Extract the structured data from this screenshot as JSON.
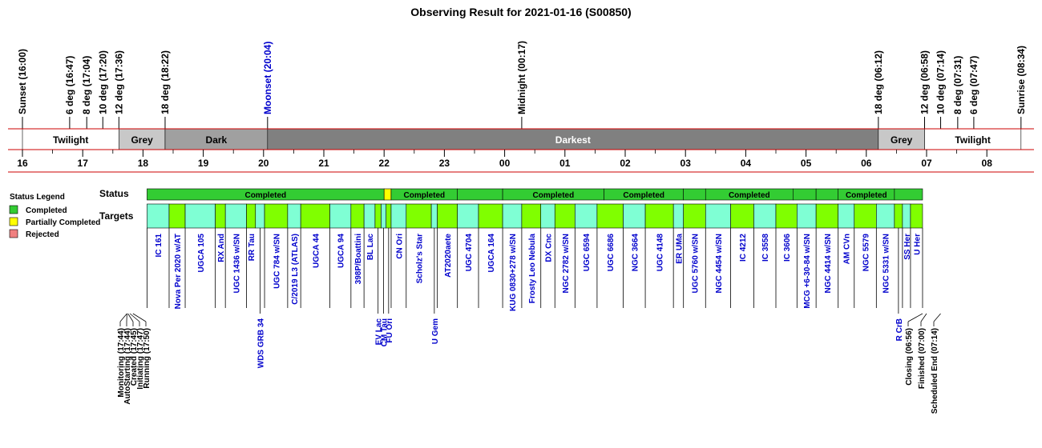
{
  "chart_data": {
    "type": "timeline",
    "title": "Observing Result for 2021-01-16 (S00850)",
    "x_axis": {
      "unit": "hour",
      "range": [
        "16:00",
        "08:34"
      ],
      "tick_labels": [
        "16",
        "17",
        "18",
        "19",
        "20",
        "21",
        "22",
        "23",
        "00",
        "01",
        "02",
        "03",
        "04",
        "05",
        "06",
        "07",
        "08"
      ]
    },
    "events": [
      {
        "label": "Sunset (16:00)",
        "time": "16:00",
        "color": "#000000"
      },
      {
        "label": "6 deg (16:47)",
        "time": "16:47",
        "color": "#000000"
      },
      {
        "label": "8 deg (17:04)",
        "time": "17:04",
        "color": "#000000"
      },
      {
        "label": "10 deg (17:20)",
        "time": "17:20",
        "color": "#000000"
      },
      {
        "label": "12 deg (17:36)",
        "time": "17:36",
        "color": "#000000"
      },
      {
        "label": "18 deg (18:22)",
        "time": "18:22",
        "color": "#000000"
      },
      {
        "label": "Moonset (20:04)",
        "time": "20:04",
        "color": "#0000cc"
      },
      {
        "label": "Midnight (00:17)",
        "time": "00:17",
        "color": "#000000"
      },
      {
        "label": "18 deg (06:12)",
        "time": "06:12",
        "color": "#000000"
      },
      {
        "label": "12 deg (06:58)",
        "time": "06:58",
        "color": "#000000"
      },
      {
        "label": "10 deg (07:14)",
        "time": "07:14",
        "color": "#000000"
      },
      {
        "label": "8 deg (07:31)",
        "time": "07:31",
        "color": "#000000"
      },
      {
        "label": "6 deg (07:47)",
        "time": "07:47",
        "color": "#000000"
      },
      {
        "label": "Sunrise (08:34)",
        "time": "08:34",
        "color": "#000000"
      }
    ],
    "phases": [
      {
        "label": "Twilight",
        "start": "16:00",
        "end": "17:36",
        "color": "#ffffff"
      },
      {
        "label": "Grey",
        "start": "17:36",
        "end": "18:22",
        "color": "#c8c8c8"
      },
      {
        "label": "Dark",
        "start": "18:22",
        "end": "20:04",
        "color": "#a0a0a0"
      },
      {
        "label": "Darkest",
        "start": "20:04",
        "end": "06:12",
        "color": "#808080"
      },
      {
        "label": "Grey",
        "start": "06:12",
        "end": "06:58",
        "color": "#c8c8c8"
      },
      {
        "label": "Twilight",
        "start": "06:58",
        "end": "08:34",
        "color": "#ffffff"
      }
    ],
    "status_row_label": "Status",
    "targets_row_label": "Targets",
    "status_legend": {
      "title": "Status Legend",
      "items": [
        {
          "label": "Completed",
          "color": "#33cc33"
        },
        {
          "label": "Partially Completed",
          "color": "#ffff00"
        },
        {
          "label": "Rejected",
          "color": "#f08080"
        }
      ]
    },
    "status_segments": [
      {
        "label": "Completed",
        "start": "18:04",
        "end": "22:00",
        "status": "completed"
      },
      {
        "label": "",
        "start": "22:00",
        "end": "22:07",
        "status": "partial"
      },
      {
        "label": "Completed",
        "start": "22:07",
        "end": "23:13",
        "status": "completed"
      },
      {
        "label": "",
        "start": "23:13",
        "end": "23:58",
        "status": "completed"
      },
      {
        "label": "Completed",
        "start": "23:58",
        "end": "01:39",
        "status": "completed"
      },
      {
        "label": "Completed",
        "start": "01:39",
        "end": "02:58",
        "status": "completed"
      },
      {
        "label": "",
        "start": "02:58",
        "end": "03:20",
        "status": "completed"
      },
      {
        "label": "Completed",
        "start": "03:20",
        "end": "04:47",
        "status": "completed"
      },
      {
        "label": "",
        "start": "04:47",
        "end": "05:10",
        "status": "completed"
      },
      {
        "label": "",
        "start": "05:10",
        "end": "05:32",
        "status": "completed"
      },
      {
        "label": "Completed",
        "start": "05:32",
        "end": "06:28",
        "status": "completed"
      },
      {
        "label": "",
        "start": "06:28",
        "end": "06:56",
        "status": "completed"
      }
    ],
    "targets": [
      {
        "name": "IC 161",
        "start": "18:04",
        "end": "18:26",
        "row": "lower"
      },
      {
        "name": "Nova Per 2020 w/AT",
        "start": "18:26",
        "end": "18:42",
        "row": "lower"
      },
      {
        "name": "UGCA 105",
        "start": "18:42",
        "end": "19:12",
        "row": "lower"
      },
      {
        "name": "RX And",
        "start": "19:12",
        "end": "19:22",
        "row": "lower"
      },
      {
        "name": "UGC 1436 w/SN",
        "start": "19:22",
        "end": "19:43",
        "row": "lower"
      },
      {
        "name": "RR Tau",
        "start": "19:43",
        "end": "19:52",
        "row": "lower"
      },
      {
        "name": "WDS GRB 34",
        "start": "19:52",
        "end": "20:01",
        "row": "upper"
      },
      {
        "name": "UGC 784 w/SN",
        "start": "20:01",
        "end": "20:24",
        "row": "lower"
      },
      {
        "name": "C/2019 L3 (ATLAS)",
        "start": "20:24",
        "end": "20:37",
        "row": "lower"
      },
      {
        "name": "UGCA 44",
        "start": "20:37",
        "end": "21:06",
        "row": "lower"
      },
      {
        "name": "UGCA 94",
        "start": "21:06",
        "end": "21:27",
        "row": "lower"
      },
      {
        "name": "398P/Boattini",
        "start": "21:27",
        "end": "21:40",
        "row": "lower"
      },
      {
        "name": "BL Lac",
        "start": "21:40",
        "end": "21:51",
        "row": "lower"
      },
      {
        "name": "EV Lac",
        "start": "21:51",
        "end": "21:57",
        "row": "upper"
      },
      {
        "name": "CM Tau",
        "start": "21:57",
        "end": "22:02",
        "row": "upper"
      },
      {
        "name": "FU Ori",
        "start": "22:02",
        "end": "22:07",
        "row": "upper"
      },
      {
        "name": "CN Ori",
        "start": "22:07",
        "end": "22:22",
        "row": "lower"
      },
      {
        "name": "Scholz's Star",
        "start": "22:22",
        "end": "22:47",
        "row": "lower"
      },
      {
        "name": "U Gem",
        "start": "22:47",
        "end": "22:53",
        "row": "upper"
      },
      {
        "name": "AT2020aete",
        "start": "22:53",
        "end": "23:13",
        "row": "lower"
      },
      {
        "name": "UGC 4704",
        "start": "23:13",
        "end": "23:34",
        "row": "lower"
      },
      {
        "name": "UGCA 164",
        "start": "23:34",
        "end": "23:58",
        "row": "lower"
      },
      {
        "name": "KUG 0830+278 w/SN",
        "start": "23:58",
        "end": "00:17",
        "row": "lower"
      },
      {
        "name": "Frosty Leo Nebula",
        "start": "00:17",
        "end": "00:36",
        "row": "lower"
      },
      {
        "name": "DX Cnc",
        "start": "00:36",
        "end": "00:50",
        "row": "lower"
      },
      {
        "name": "NGC 2782 w/SN",
        "start": "00:50",
        "end": "01:10",
        "row": "lower"
      },
      {
        "name": "UGC 6594",
        "start": "01:10",
        "end": "01:32",
        "row": "lower"
      },
      {
        "name": "UGC 6686",
        "start": "01:32",
        "end": "01:58",
        "row": "lower"
      },
      {
        "name": "NGC 3664",
        "start": "01:58",
        "end": "02:20",
        "row": "lower"
      },
      {
        "name": "UGC 4148",
        "start": "02:20",
        "end": "02:48",
        "row": "lower"
      },
      {
        "name": "ER UMa",
        "start": "02:48",
        "end": "02:58",
        "row": "lower"
      },
      {
        "name": "UGC 5760 w/SN",
        "start": "02:58",
        "end": "03:20",
        "row": "lower"
      },
      {
        "name": "NGC 4454 w/SN",
        "start": "03:20",
        "end": "03:45",
        "row": "lower"
      },
      {
        "name": "IC 4212",
        "start": "03:45",
        "end": "04:08",
        "row": "lower"
      },
      {
        "name": "IC 3558",
        "start": "04:08",
        "end": "04:30",
        "row": "lower"
      },
      {
        "name": "IC 3606",
        "start": "04:30",
        "end": "04:51",
        "row": "lower"
      },
      {
        "name": "MCG +6-30-84 w/SN",
        "start": "04:51",
        "end": "05:10",
        "row": "lower"
      },
      {
        "name": "NGC 4414 w/SN",
        "start": "05:10",
        "end": "05:32",
        "row": "lower"
      },
      {
        "name": "AM CVn",
        "start": "05:32",
        "end": "05:48",
        "row": "lower"
      },
      {
        "name": "NGC 5579",
        "start": "05:48",
        "end": "06:10",
        "row": "lower"
      },
      {
        "name": "NGC 5331 w/SN",
        "start": "06:10",
        "end": "06:28",
        "row": "lower"
      },
      {
        "name": "R CrB",
        "start": "06:28",
        "end": "06:36",
        "row": "upper"
      },
      {
        "name": "SS Her",
        "start": "06:36",
        "end": "06:44",
        "row": "lower"
      },
      {
        "name": "U Her",
        "start": "06:44",
        "end": "06:56",
        "row": "lower"
      }
    ],
    "state_events": [
      {
        "label": "Monitoring (17:44)",
        "time": "17:44"
      },
      {
        "label": "AutoStarting (17:44)",
        "time": "17:44"
      },
      {
        "label": "Created (17:45)",
        "time": "17:45"
      },
      {
        "label": "Initiating (17:47)",
        "time": "17:47"
      },
      {
        "label": "Running (17:50)",
        "time": "17:50"
      },
      {
        "label": "Closing (06:56)",
        "time": "06:56"
      },
      {
        "label": "Finished (07:00)",
        "time": "07:00"
      },
      {
        "label": "Scheduled End (07:14)",
        "time": "07:14"
      }
    ],
    "colors": {
      "axis_line": "#cc0000",
      "target_blue": "#0000cc",
      "completed": "#33cc33",
      "partial": "#ffff00",
      "target_a": "#7fffd4",
      "target_b": "#80ff00"
    }
  }
}
